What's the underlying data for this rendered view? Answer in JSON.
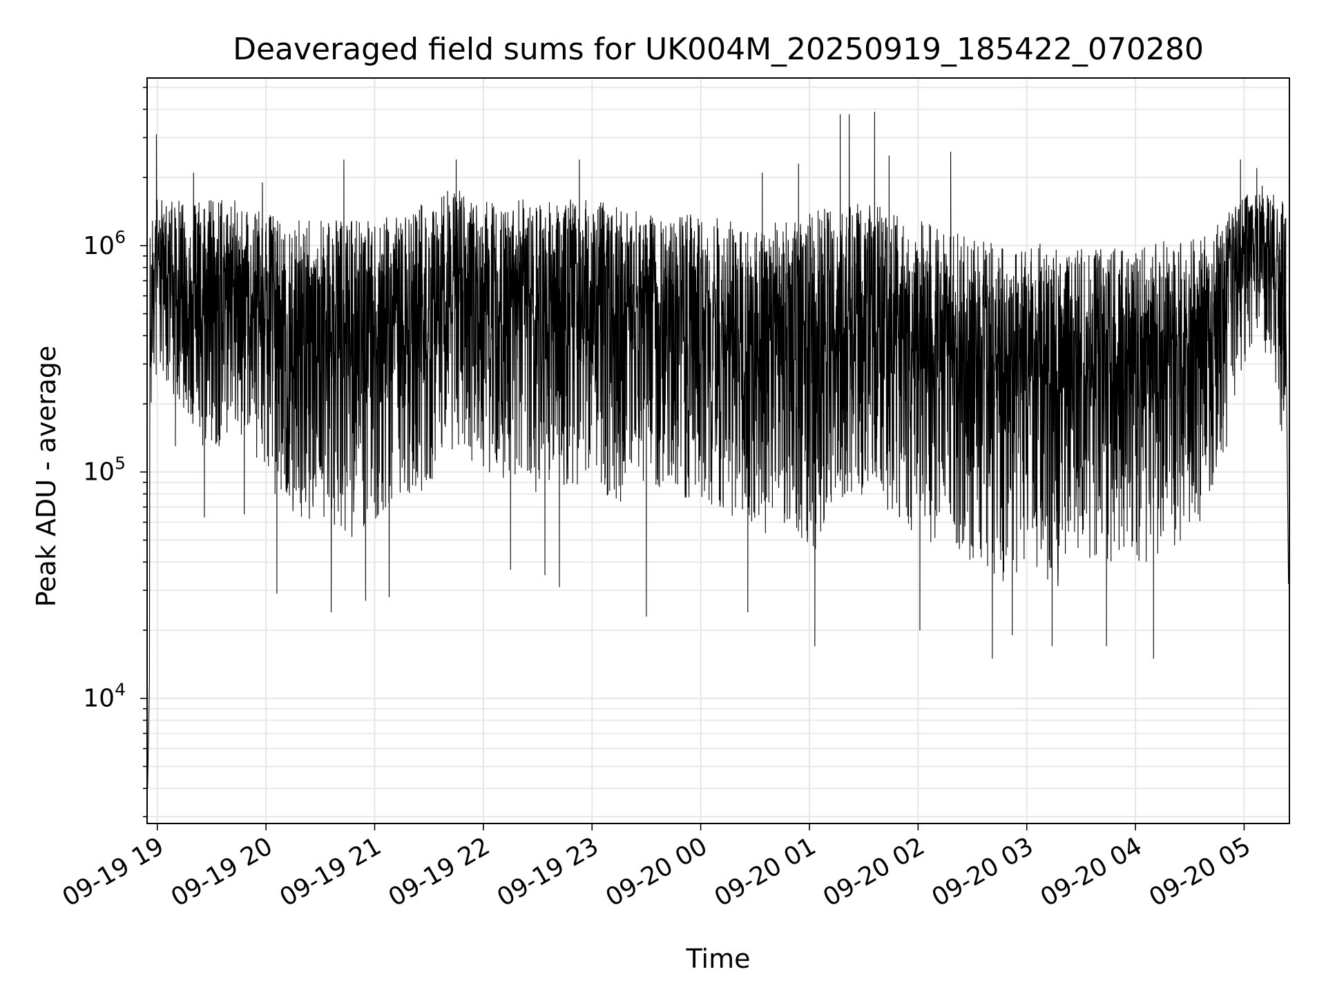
{
  "chart_data": {
    "type": "line",
    "title": "Deaveraged field sums for UK004M_20250919_185422_070280",
    "xlabel": "Time",
    "ylabel": "Peak ADU - average",
    "yscale": "log",
    "grid": true,
    "line_color": "#000000",
    "grid_color": "#e6e6e6",
    "xlim": [
      "2025-09-19T18:54:22",
      "2025-09-20T05:25:00"
    ],
    "ylim": [
      2800,
      5500000
    ],
    "x_ticks": [
      {
        "t": "2025-09-19T19:00",
        "label": "09-19 19"
      },
      {
        "t": "2025-09-19T20:00",
        "label": "09-19 20"
      },
      {
        "t": "2025-09-19T21:00",
        "label": "09-19 21"
      },
      {
        "t": "2025-09-19T22:00",
        "label": "09-19 22"
      },
      {
        "t": "2025-09-19T23:00",
        "label": "09-19 23"
      },
      {
        "t": "2025-09-20T00:00",
        "label": "09-20 00"
      },
      {
        "t": "2025-09-20T01:00",
        "label": "09-20 01"
      },
      {
        "t": "2025-09-20T02:00",
        "label": "09-20 02"
      },
      {
        "t": "2025-09-20T03:00",
        "label": "09-20 03"
      },
      {
        "t": "2025-09-20T04:00",
        "label": "09-20 04"
      },
      {
        "t": "2025-09-20T05:00",
        "label": "09-20 05"
      }
    ],
    "y_ticks": [
      {
        "value": 10000,
        "base": "10",
        "exp": "4"
      },
      {
        "value": 100000,
        "base": "10",
        "exp": "5"
      },
      {
        "value": 1000000,
        "base": "10",
        "exp": "6"
      }
    ],
    "envelope": {
      "times": [
        "2025-09-19T18:55",
        "2025-09-19T19:00",
        "2025-09-19T19:15",
        "2025-09-19T19:30",
        "2025-09-19T19:45",
        "2025-09-19T20:00",
        "2025-09-19T20:15",
        "2025-09-19T20:30",
        "2025-09-19T20:45",
        "2025-09-19T21:00",
        "2025-09-19T21:15",
        "2025-09-19T21:30",
        "2025-09-19T21:45",
        "2025-09-19T22:00",
        "2025-09-19T22:15",
        "2025-09-19T22:30",
        "2025-09-19T22:45",
        "2025-09-19T23:00",
        "2025-09-19T23:15",
        "2025-09-19T23:30",
        "2025-09-19T23:45",
        "2025-09-20T00:00",
        "2025-09-20T00:15",
        "2025-09-20T00:30",
        "2025-09-20T00:45",
        "2025-09-20T01:00",
        "2025-09-20T01:15",
        "2025-09-20T01:30",
        "2025-09-20T01:45",
        "2025-09-20T02:00",
        "2025-09-20T02:15",
        "2025-09-20T02:30",
        "2025-09-20T02:45",
        "2025-09-20T03:00",
        "2025-09-20T03:15",
        "2025-09-20T03:30",
        "2025-09-20T03:45",
        "2025-09-20T04:00",
        "2025-09-20T04:15",
        "2025-09-20T04:30",
        "2025-09-20T04:45",
        "2025-09-20T05:00",
        "2025-09-20T05:10",
        "2025-09-20T05:20"
      ],
      "upper": [
        1000000,
        1600000,
        1500000,
        1500000,
        1500000,
        1300000,
        1200000,
        1200000,
        1200000,
        1200000,
        1300000,
        1500000,
        1700000,
        1500000,
        1500000,
        1500000,
        1500000,
        1500000,
        1400000,
        1300000,
        1300000,
        1300000,
        1200000,
        1200000,
        1200000,
        1300000,
        1500000,
        1500000,
        1300000,
        1200000,
        1100000,
        1000000,
        1000000,
        1000000,
        900000,
        900000,
        900000,
        900000,
        1000000,
        1000000,
        1200000,
        1600000,
        1800000,
        1500000
      ],
      "lower": [
        100000,
        300000,
        150000,
        120000,
        150000,
        100000,
        60000,
        60000,
        50000,
        60000,
        80000,
        80000,
        120000,
        100000,
        90000,
        80000,
        80000,
        90000,
        70000,
        90000,
        80000,
        70000,
        50000,
        50000,
        60000,
        40000,
        70000,
        80000,
        60000,
        50000,
        40000,
        40000,
        30000,
        40000,
        30000,
        40000,
        40000,
        40000,
        40000,
        50000,
        80000,
        300000,
        400000,
        150000
      ]
    },
    "extremes": [
      {
        "t": "2025-09-19T18:54:40",
        "value": 4000
      },
      {
        "t": "2025-09-19T18:55:40",
        "value": 12000
      },
      {
        "t": "2025-09-19T18:59:30",
        "value": 3100000
      },
      {
        "t": "2025-09-19T19:10:00",
        "value": 130000
      },
      {
        "t": "2025-09-19T19:20:00",
        "value": 2100000
      },
      {
        "t": "2025-09-19T19:26:00",
        "value": 63000
      },
      {
        "t": "2025-09-19T19:48:00",
        "value": 65000
      },
      {
        "t": "2025-09-19T19:58:00",
        "value": 1900000
      },
      {
        "t": "2025-09-19T20:05:00",
        "value": 80000
      },
      {
        "t": "2025-09-19T20:06:00",
        "value": 29000
      },
      {
        "t": "2025-09-19T20:36:00",
        "value": 24000
      },
      {
        "t": "2025-09-19T20:43:00",
        "value": 2400000
      },
      {
        "t": "2025-09-19T20:55:00",
        "value": 27000
      },
      {
        "t": "2025-09-19T21:08:00",
        "value": 28000
      },
      {
        "t": "2025-09-19T21:45:00",
        "value": 2400000
      },
      {
        "t": "2025-09-19T22:15:00",
        "value": 37000
      },
      {
        "t": "2025-09-19T22:34:00",
        "value": 35000
      },
      {
        "t": "2025-09-19T22:42:00",
        "value": 31000
      },
      {
        "t": "2025-09-19T22:53:00",
        "value": 2400000
      },
      {
        "t": "2025-09-19T23:30:00",
        "value": 23000
      },
      {
        "t": "2025-09-20T00:26:00",
        "value": 24000
      },
      {
        "t": "2025-09-20T00:34:00",
        "value": 2100000
      },
      {
        "t": "2025-09-20T00:54:00",
        "value": 2300000
      },
      {
        "t": "2025-09-20T01:03:00",
        "value": 17000
      },
      {
        "t": "2025-09-20T01:17:00",
        "value": 3800000
      },
      {
        "t": "2025-09-20T01:22:00",
        "value": 3800000
      },
      {
        "t": "2025-09-20T01:36:00",
        "value": 3900000
      },
      {
        "t": "2025-09-20T01:44:00",
        "value": 2500000
      },
      {
        "t": "2025-09-20T02:01:00",
        "value": 20000
      },
      {
        "t": "2025-09-20T02:18:00",
        "value": 2600000
      },
      {
        "t": "2025-09-20T02:41:00",
        "value": 15000
      },
      {
        "t": "2025-09-20T02:52:00",
        "value": 19000
      },
      {
        "t": "2025-09-20T03:14:00",
        "value": 17000
      },
      {
        "t": "2025-09-20T03:44:00",
        "value": 17000
      },
      {
        "t": "2025-09-20T04:10:00",
        "value": 15000
      },
      {
        "t": "2025-09-20T04:58:00",
        "value": 2400000
      },
      {
        "t": "2025-09-20T05:07:00",
        "value": 2200000
      },
      {
        "t": "2025-09-20T05:23:00",
        "value": 550000
      },
      {
        "t": "2025-09-20T05:24:30",
        "value": 32000
      }
    ]
  }
}
